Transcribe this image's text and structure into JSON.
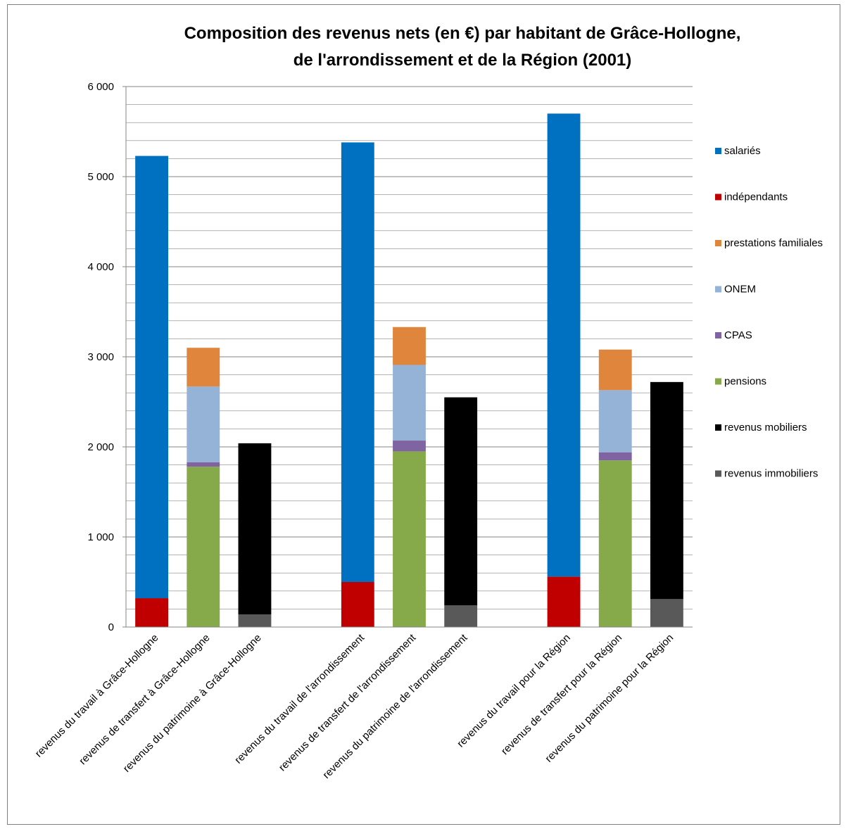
{
  "chart_data": {
    "type": "bar",
    "stacked": true,
    "title": "Composition  des revenus nets (en €) par habitant de Grâce-Hollogne, de l'arrondissement  et de la Région (2001)",
    "title_lines": [
      "Composition  des revenus nets (en €) par habitant de Grâce-Hollogne,",
      "de l'arrondissement  et de la Région (2001)"
    ],
    "xlabel": "",
    "ylabel": "",
    "ylim": [
      0,
      6000
    ],
    "y_ticks": [
      0,
      1000,
      2000,
      3000,
      4000,
      5000,
      6000
    ],
    "y_tick_labels": [
      "0",
      "1 000",
      "2 000",
      "3 000",
      "4 000",
      "5 000",
      "6 000"
    ],
    "grid": true,
    "legend_position": "right",
    "categories": [
      "revenus du travail à Grâce-Hollogne",
      "revenus de transfert à Grâce-Hollogne",
      "revenus du patrimoine à Grâce-Hollogne",
      "",
      "revenus du travail de l'arrondissement",
      "revenus de transfert de l'arrondissement",
      "revenus du patrimoine de l'arrondissement",
      "",
      "revenus du travail pour la Région",
      "revenus de transfert pour la Région",
      "revenus du patrimoine pour la Région"
    ],
    "stack_order": [
      "revenus immobiliers",
      "pensions",
      "indépendants",
      "revenus mobiliers",
      "CPAS",
      "ONEM",
      "salariés",
      "prestations familiales"
    ],
    "series": [
      {
        "name": "salariés",
        "color": "#0070C0",
        "values": [
          4910,
          0,
          0,
          null,
          4880,
          0,
          0,
          null,
          5140,
          0,
          0
        ]
      },
      {
        "name": "indépendants",
        "color": "#C00000",
        "values": [
          320,
          0,
          0,
          null,
          500,
          0,
          0,
          null,
          560,
          0,
          0
        ]
      },
      {
        "name": "prestations familiales",
        "color": "#E0853C",
        "values": [
          0,
          430,
          0,
          null,
          0,
          420,
          0,
          null,
          0,
          450,
          0
        ]
      },
      {
        "name": "ONEM",
        "color": "#95B3D7",
        "values": [
          0,
          840,
          0,
          null,
          0,
          840,
          0,
          null,
          0,
          690,
          0
        ]
      },
      {
        "name": "CPAS",
        "color": "#8064A2",
        "values": [
          0,
          50,
          0,
          null,
          0,
          120,
          0,
          null,
          0,
          90,
          0
        ]
      },
      {
        "name": "pensions",
        "color": "#86A94A",
        "values": [
          0,
          1780,
          0,
          null,
          0,
          1950,
          0,
          null,
          0,
          1850,
          0
        ]
      },
      {
        "name": "revenus mobiliers",
        "color": "#000000",
        "values": [
          0,
          0,
          1900,
          null,
          0,
          0,
          2310,
          null,
          0,
          0,
          2410
        ]
      },
      {
        "name": "revenus immobiliers",
        "color": "#595959",
        "values": [
          0,
          0,
          140,
          null,
          0,
          0,
          240,
          null,
          0,
          0,
          310
        ]
      }
    ],
    "legend": [
      "salariés",
      "indépendants",
      "prestations familiales",
      "ONEM",
      "CPAS",
      "pensions",
      "revenus mobiliers",
      "revenus immobiliers"
    ]
  },
  "colors": {
    "axis": "#868686",
    "grid": "#868686",
    "frame": "#7f7f7f"
  }
}
